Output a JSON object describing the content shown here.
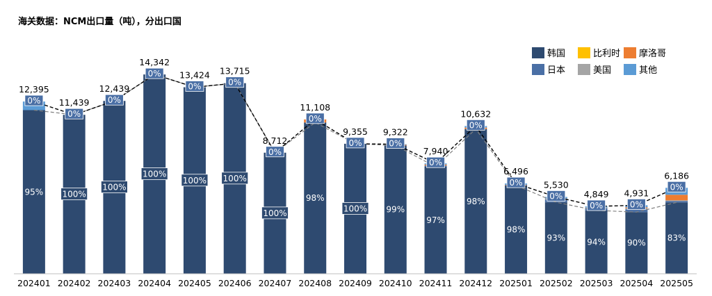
{
  "chart_data": {
    "type": "bar",
    "title": "海关数据：NCM出口量（吨），分出口国",
    "xlabel": "",
    "ylabel": "",
    "stacked": true,
    "ylim": [
      0,
      16200
    ],
    "legend_position": "top-right",
    "categories": [
      "202401",
      "202402",
      "202403",
      "202404",
      "202405",
      "202406",
      "202407",
      "202408",
      "202409",
      "202410",
      "202411",
      "202412",
      "202501",
      "202502",
      "202503",
      "202504",
      "202505"
    ],
    "totals": [
      12395,
      11439,
      12439,
      14342,
      13424,
      13715,
      8712,
      11108,
      9355,
      9322,
      7940,
      10632,
      6496,
      5530,
      4849,
      4931,
      6186
    ],
    "totals_labels": [
      "12,395",
      "11,439",
      "12,439",
      "14,342",
      "13,424",
      "13,715",
      "8,712",
      "11,108",
      "9,355",
      "9,322",
      "7,940",
      "10,632",
      "6,496",
      "5,530",
      "4,849",
      "4,931",
      "6,186"
    ],
    "korea_share_labels": [
      "95%",
      "100%",
      "100%",
      "100%",
      "100%",
      "100%",
      "100%",
      "98%",
      "100%",
      "99%",
      "97%",
      "98%",
      "98%",
      "93%",
      "94%",
      "90%",
      "83%"
    ],
    "top_share_labels": [
      "0%",
      "0%",
      "0%",
      "0%",
      "0%",
      "0%",
      "0%",
      "0%",
      "0%",
      "0%",
      "0%",
      "0%",
      "0%",
      "0%",
      "0%",
      "0%",
      "0%"
    ],
    "series": [
      {
        "name": "韩国",
        "color": "#2e4a70",
        "values": [
          11775,
          11439,
          12439,
          14342,
          13424,
          13715,
          8712,
          10886,
          9355,
          9229,
          7702,
          10419,
          6366,
          5143,
          4558,
          4438,
          5134
        ]
      },
      {
        "name": "日本",
        "color": "#4a6fa5",
        "values": [
          0,
          0,
          0,
          0,
          0,
          0,
          0,
          0,
          0,
          0,
          80,
          0,
          0,
          200,
          150,
          200,
          100
        ]
      },
      {
        "name": "比利时",
        "color": "#ffc000",
        "values": [
          0,
          0,
          0,
          0,
          0,
          0,
          0,
          0,
          0,
          0,
          0,
          0,
          0,
          0,
          0,
          0,
          0
        ]
      },
      {
        "name": "美国",
        "color": "#a5a5a5",
        "values": [
          0,
          0,
          0,
          0,
          0,
          0,
          0,
          0,
          0,
          0,
          0,
          0,
          0,
          80,
          60,
          80,
          50
        ]
      },
      {
        "name": "摩洛哥",
        "color": "#ed7d31",
        "values": [
          0,
          0,
          0,
          0,
          0,
          0,
          0,
          222,
          0,
          50,
          80,
          100,
          30,
          0,
          0,
          70,
          400
        ]
      },
      {
        "name": "其他",
        "color": "#5b9bd5",
        "values": [
          620,
          0,
          0,
          0,
          0,
          0,
          0,
          0,
          0,
          43,
          78,
          113,
          100,
          107,
          81,
          143,
          502
        ]
      }
    ]
  }
}
